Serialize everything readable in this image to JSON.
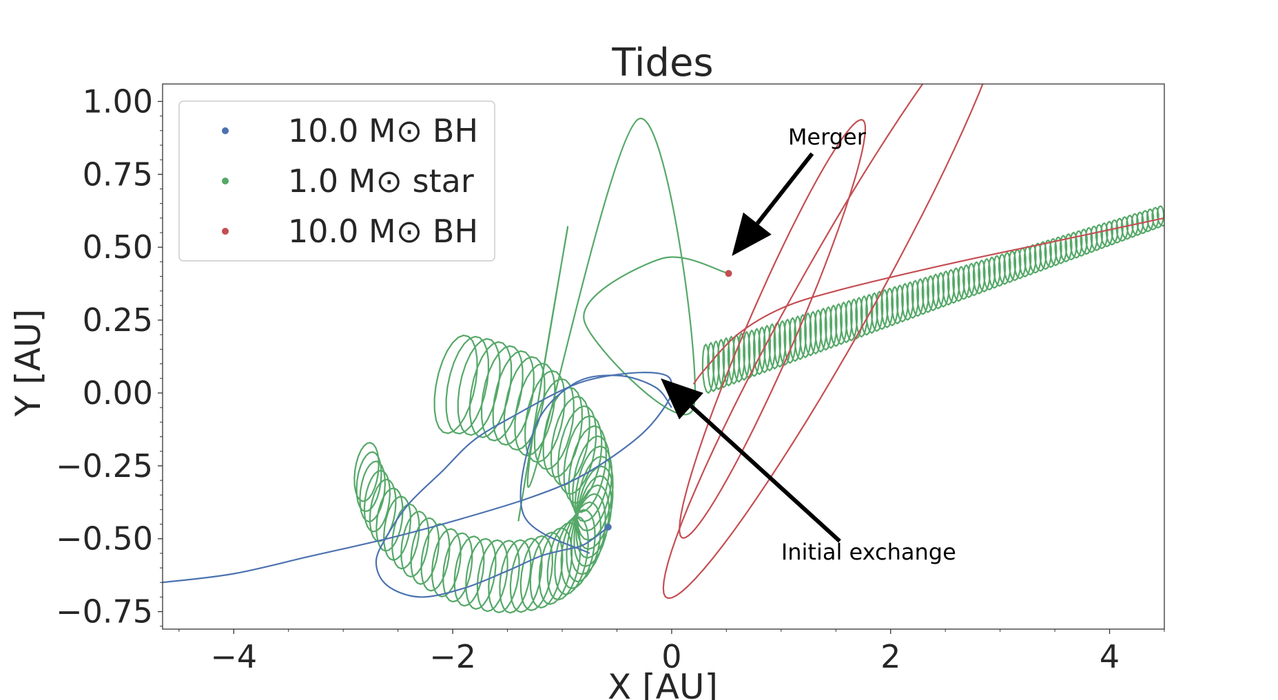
{
  "chart_data": {
    "type": "line",
    "title": "Tides",
    "xlabel": "X [AU]",
    "ylabel": "Y [AU]",
    "xlim": [
      -4.65,
      4.5
    ],
    "ylim": [
      -0.81,
      1.06
    ],
    "x_ticks": [
      -4,
      -2,
      0,
      2,
      4
    ],
    "x_tick_labels": [
      "−4",
      "−2",
      "0",
      "2",
      "4"
    ],
    "y_ticks": [
      1.0,
      0.75,
      0.5,
      0.25,
      0.0,
      -0.25,
      -0.5,
      -0.75
    ],
    "y_tick_labels": [
      "1.00",
      "0.75",
      "0.50",
      "0.25",
      "0.00",
      "−0.25",
      "−0.50",
      "−0.75"
    ],
    "grid": false,
    "legend_position": "top-left",
    "series": [
      {
        "name": "10.0 M⊙ BH",
        "color": "#4c72b0",
        "end_point": [
          -0.58,
          -0.46
        ],
        "path": [
          [
            -4.65,
            -0.65
          ],
          [
            -4.0,
            -0.62
          ],
          [
            -3.3,
            -0.56
          ],
          [
            -2.6,
            -0.5
          ],
          [
            -2.0,
            -0.44
          ],
          [
            -1.3,
            -0.36
          ],
          [
            -0.8,
            -0.28
          ],
          [
            -0.3,
            -0.15
          ],
          [
            -0.05,
            -0.04
          ],
          [
            0.0,
            0.02
          ],
          [
            -0.05,
            0.06
          ],
          [
            -0.3,
            0.07
          ],
          [
            -0.7,
            0.05
          ],
          [
            -1.0,
            0.01
          ],
          [
            -1.4,
            -0.07
          ],
          [
            -1.8,
            -0.16
          ],
          [
            -2.1,
            -0.27
          ],
          [
            -2.4,
            -0.38
          ],
          [
            -2.6,
            -0.49
          ],
          [
            -2.7,
            -0.58
          ],
          [
            -2.6,
            -0.66
          ],
          [
            -2.3,
            -0.7
          ],
          [
            -1.9,
            -0.67
          ],
          [
            -1.5,
            -0.61
          ],
          [
            -1.2,
            -0.56
          ],
          [
            -1.0,
            -0.54
          ],
          [
            -0.8,
            -0.52
          ],
          [
            -0.58,
            -0.46
          ]
        ],
        "spine": [
          [
            -0.75,
            -0.55
          ],
          [
            -1.35,
            -0.42
          ],
          [
            -1.25,
            -0.12
          ],
          [
            -0.9,
            0.03
          ],
          [
            -0.5,
            0.06
          ],
          [
            -0.15,
            0.02
          ],
          [
            0.0,
            -0.05
          ]
        ]
      },
      {
        "name": "1.0 M⊙ star",
        "color": "#55a868",
        "end_point": [
          0.52,
          0.41
        ],
        "loop_start": [
          -2.7,
          -0.55
        ],
        "loop_end": [
          4.5,
          0.61
        ],
        "wide_loops": [
          [
            -1.4,
            -0.44
          ],
          [
            -0.95,
            0.57
          ],
          [
            -1.3,
            -0.32
          ],
          [
            -0.3,
            0.94
          ],
          [
            0.2,
            -0.05
          ],
          [
            -0.8,
            0.25
          ],
          [
            -0.1,
            0.46
          ],
          [
            0.52,
            0.41
          ]
        ]
      },
      {
        "name": "10.0 M⊙ BH",
        "color": "#c44e52",
        "path": [
          [
            4.5,
            0.6
          ],
          [
            3.5,
            0.52
          ],
          [
            2.5,
            0.44
          ],
          [
            1.5,
            0.35
          ],
          [
            1.0,
            0.29
          ],
          [
            0.6,
            0.2
          ],
          [
            0.3,
            0.08
          ],
          [
            0.2,
            0.03
          ]
        ],
        "ellipses": [
          {
            "center": [
              0.92,
              0.22
            ],
            "semi_major": 1.1,
            "semi_minor": 0.16,
            "angle_deg": 40
          },
          {
            "center": [
              1.48,
              0.32
            ],
            "semi_major": 1.85,
            "semi_minor": 0.22,
            "angle_deg": 33
          }
        ]
      }
    ],
    "annotations": [
      {
        "text": "Merger",
        "xy": [
          0.55,
          0.47
        ],
        "text_xy": [
          1.0,
          0.88
        ]
      },
      {
        "text": "Initial exchange",
        "xy": [
          -0.1,
          0.05
        ],
        "text_xy": [
          1.0,
          -0.52
        ]
      }
    ]
  }
}
